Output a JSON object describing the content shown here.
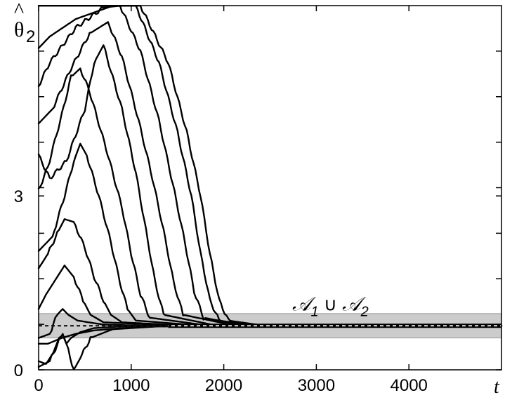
{
  "chart_data": {
    "type": "line",
    "title": "",
    "xlabel": "t",
    "ylabel": {
      "base": "θ",
      "accent": "^",
      "subscript": "2"
    },
    "xlim": [
      0,
      5000
    ],
    "ylim": [
      0,
      6.283
    ],
    "xticks": [
      0,
      1000,
      2000,
      3000,
      4000
    ],
    "xtick_labels": [
      "0",
      "1000",
      "2000",
      "3000",
      "4000"
    ],
    "yticks": [
      0,
      3
    ],
    "ytick_labels": [
      "0",
      "3"
    ],
    "extra_ytick_values": [
      0.785,
      1.571,
      2.356,
      3.142,
      3.927,
      4.712,
      5.498
    ],
    "grid": false,
    "band": {
      "ymin": 0.55,
      "ymax": 0.97,
      "fill": "#cccccc",
      "label": {
        "part1": "𝒜",
        "sub1": "1",
        "union": " ∪ ",
        "part2": "𝒜",
        "sub2": "2"
      },
      "label_anchor": {
        "x": 3000,
        "y": 1.02
      }
    },
    "reference_line": {
      "y": 0.76,
      "style": "dashed",
      "color": "#000000"
    },
    "steady_value": 0.76,
    "series": [
      {
        "x": [
          0,
          150,
          600,
          1100,
          1400,
          1600,
          1750,
          1850,
          1950,
          2050,
          2400,
          5000
        ],
        "y": [
          6.28,
          6.28,
          6.28,
          6.28,
          5.3,
          4.1,
          3.0,
          2.0,
          1.2,
          0.85,
          0.77,
          0.76
        ]
      },
      {
        "x": [
          0,
          120,
          400,
          800,
          950,
          1050,
          1300,
          1500,
          1650,
          1750,
          1850,
          1950,
          2300,
          5000
        ],
        "y": [
          5.55,
          5.75,
          6.05,
          6.28,
          6.28,
          6.28,
          5.3,
          4.1,
          3.0,
          2.0,
          1.2,
          0.85,
          0.77,
          0.76
        ]
      },
      {
        "x": [
          0,
          120,
          400,
          700,
          880,
          1100,
          1300,
          1450,
          1580,
          1680,
          1780,
          2200,
          5000
        ],
        "y": [
          4.9,
          5.3,
          5.9,
          6.25,
          6.28,
          5.5,
          4.3,
          3.2,
          2.2,
          1.35,
          0.9,
          0.77,
          0.76
        ]
      },
      {
        "x": [
          0,
          150,
          350,
          550,
          750,
          900,
          1080,
          1230,
          1350,
          1460,
          1560,
          2100,
          5000
        ],
        "y": [
          4.25,
          4.5,
          5.2,
          5.8,
          6.0,
          5.4,
          4.3,
          3.3,
          2.4,
          1.5,
          0.95,
          0.77,
          0.76
        ]
      },
      {
        "x": [
          0,
          120,
          300,
          500,
          600,
          700,
          900,
          1050,
          1160,
          1260,
          1350,
          1900,
          5000
        ],
        "y": [
          3.7,
          3.3,
          3.6,
          4.5,
          5.3,
          5.6,
          4.5,
          3.4,
          2.4,
          1.5,
          0.95,
          0.77,
          0.76
        ]
      },
      {
        "x": [
          0,
          100,
          250,
          350,
          450,
          550,
          750,
          900,
          1000,
          1100,
          1200,
          1800,
          5000
        ],
        "y": [
          3.1,
          3.5,
          4.4,
          5.05,
          5.2,
          4.8,
          3.7,
          2.8,
          2.0,
          1.3,
          0.9,
          0.77,
          0.76
        ]
      },
      {
        "x": [
          0,
          150,
          280,
          380,
          450,
          520,
          650,
          780,
          880,
          960,
          1050,
          1700,
          5000
        ],
        "y": [
          2.05,
          2.3,
          3.0,
          3.6,
          3.9,
          3.7,
          3.0,
          2.2,
          1.5,
          1.05,
          0.85,
          0.77,
          0.76
        ]
      },
      {
        "x": [
          0,
          100,
          200,
          280,
          380,
          500,
          600,
          700,
          780,
          900,
          1500,
          5000
        ],
        "y": [
          1.75,
          2.0,
          2.35,
          2.6,
          2.55,
          2.1,
          1.6,
          1.2,
          0.95,
          0.82,
          0.77,
          0.76
        ]
      },
      {
        "x": [
          0,
          80,
          180,
          280,
          380,
          480,
          560,
          700,
          1400,
          5000
        ],
        "y": [
          1.05,
          1.3,
          1.55,
          1.8,
          1.6,
          1.2,
          0.95,
          0.82,
          0.77,
          0.76
        ]
      },
      {
        "x": [
          0,
          100,
          250,
          400,
          600,
          900,
          1300,
          5000
        ],
        "y": [
          0.45,
          0.45,
          0.55,
          0.62,
          0.68,
          0.72,
          0.75,
          0.76
        ]
      },
      {
        "x": [
          0,
          120,
          220,
          260,
          300,
          380,
          450,
          560,
          800,
          1300,
          5000
        ],
        "y": [
          0.05,
          0.15,
          0.5,
          0.62,
          0.45,
          0.0,
          0.2,
          0.55,
          0.7,
          0.75,
          0.76
        ]
      },
      {
        "x": [
          0,
          80,
          160,
          220,
          260,
          300,
          350,
          450,
          600,
          900,
          5000
        ],
        "y": [
          0.15,
          0.1,
          0.3,
          0.55,
          0.6,
          0.45,
          0.55,
          0.65,
          0.72,
          0.75,
          0.76
        ]
      },
      {
        "x": [
          0,
          120,
          200,
          260,
          320,
          420,
          700,
          1200,
          5000
        ],
        "y": [
          0.55,
          0.62,
          0.95,
          1.05,
          0.95,
          0.85,
          0.78,
          0.76,
          0.76
        ]
      }
    ]
  }
}
